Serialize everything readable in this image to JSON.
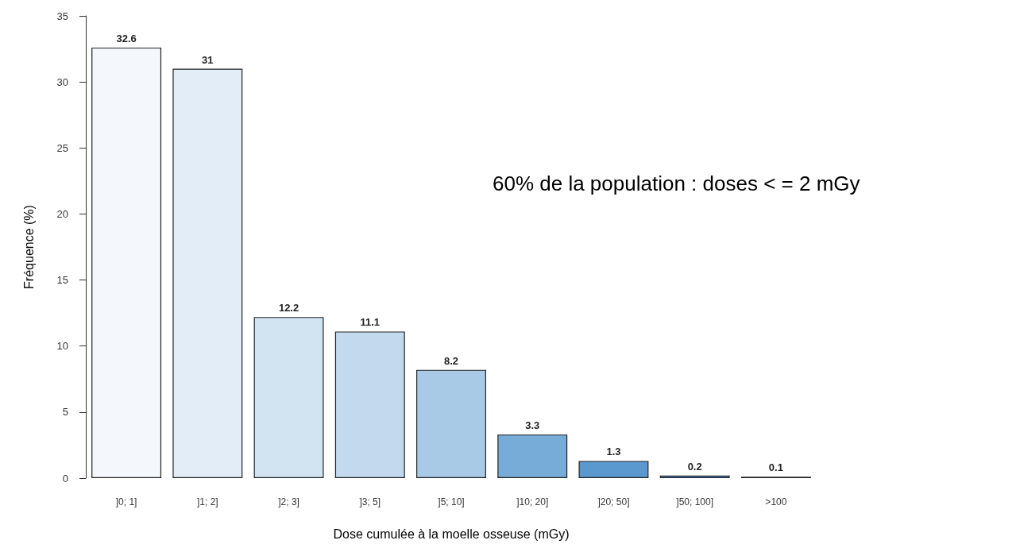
{
  "chart_data": {
    "type": "bar",
    "xlabel": "Dose cumulée à la moelle osseuse (mGy)",
    "ylabel": "Fréquence (%)",
    "categories": [
      "]0; 1]",
      "]1; 2]",
      "]2; 3]",
      "]3; 5]",
      "]5; 10]",
      "]10; 20]",
      "]20; 50]",
      "]50; 100]",
      ">100"
    ],
    "values": [
      32.6,
      31,
      12.2,
      11.1,
      8.2,
      3.3,
      1.3,
      0.2,
      0.1
    ],
    "colors": [
      "#f4f8fc",
      "#e2edf7",
      "#d2e3f2",
      "#c2d9ee",
      "#a8cae6",
      "#78acd8",
      "#5a99cf",
      "#3e84c2",
      "#2a6cad"
    ],
    "ylim": [
      0,
      35
    ],
    "yticks": [
      0,
      5,
      10,
      15,
      20,
      25,
      30,
      35
    ],
    "grid": false,
    "data_labels": true,
    "annotations": [
      "60% de la population : doses < = 2 mGy"
    ]
  }
}
